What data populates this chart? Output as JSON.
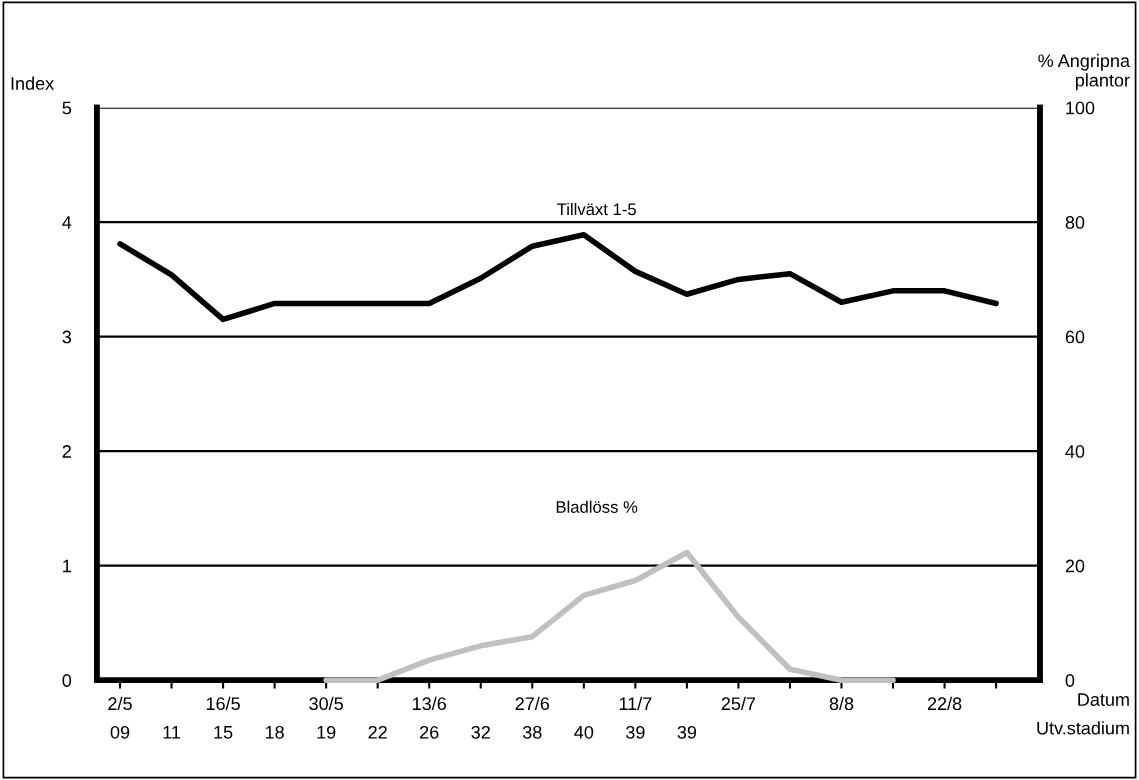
{
  "chart_data": {
    "type": "line",
    "categories": [
      "2/5\n09",
      "\n11",
      "16/5\n15",
      "\n18",
      "30/5\n19",
      "\n22",
      "13/6\n26",
      "\n32",
      "27/6\n38",
      "\n40",
      "11/7\n39",
      "\n39",
      "25/7\n",
      null,
      "8/8\n",
      null,
      "22/8\n",
      null
    ],
    "xlabel": "Datum\nUtv.stadium",
    "ylabel": "Index",
    "y2label": "% Angripna\nplantor",
    "series": [
      {
        "color": "#000000",
        "values": [
          3.81,
          3.54,
          3.15,
          3.29,
          3.29,
          3.29,
          3.29,
          3.51,
          3.79,
          3.89,
          3.57,
          3.37,
          3.5,
          3.55,
          3.3,
          3.4,
          3.4,
          3.29
        ]
      },
      {
        "color": "#c0c0c0",
        "axis": "y2",
        "values": [
          null,
          null,
          null,
          null,
          0,
          0,
          3.5,
          6,
          7.6,
          14.8,
          17.4,
          22.3,
          11,
          1.9,
          0,
          0,
          null,
          null
        ]
      }
    ],
    "ylim": [
      0,
      5
    ],
    "yticks": [
      0,
      1,
      2,
      3,
      4,
      5
    ],
    "y2lim": [
      0,
      100
    ],
    "y2ticks": [
      0,
      20,
      40,
      60,
      80,
      100
    ],
    "grid": "y",
    "marker": "none",
    "line_style": "solid",
    "annotations": [
      "Tillväxt 1-5",
      "Bladlöss %"
    ]
  }
}
